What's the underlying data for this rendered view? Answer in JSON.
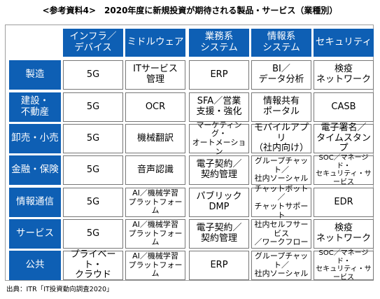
{
  "title": "<参考資料4>　2020年度に新規投資が期待される製品・サービス（業種別）",
  "columns": [
    "インフラ／\nデバイス",
    "ミドルウェア",
    "業務系\nシステム",
    "情報系\nシステム",
    "セキュリティ"
  ],
  "rows": [
    {
      "label": "製造",
      "cells": [
        "5G",
        "ITサービス\n管理",
        "ERP",
        "BI／\nデータ分析",
        "検疫\nネットワーク"
      ]
    },
    {
      "label": "建設・\n不動産",
      "cells": [
        "5G",
        "OCR",
        "SFA／営業\n支援・強化",
        "情報共有\nポータル",
        "CASB"
      ]
    },
    {
      "label": "卸売・小売",
      "cells": [
        "5G",
        "機械翻訳",
        "マーケティング・\nオートメーション",
        "モバイルアプリ\n（社内向け）",
        "電子署名／\nタイムスタンプ"
      ]
    },
    {
      "label": "金融・保険",
      "cells": [
        "5G",
        "音声認識",
        "電子契約／\n契約管理",
        "グループチャット／\n社内ソーシャル",
        "SOC／マネージド・\nセキュリティ・サービス"
      ]
    },
    {
      "label": "情報通信",
      "cells": [
        "5G",
        "AI／機械学習\nプラットフォーム",
        "パブリック\nDMP",
        "チャットボット／\nチャットサポート",
        "EDR"
      ]
    },
    {
      "label": "サービス",
      "cells": [
        "5G",
        "AI／機械学習\nプラットフォーム",
        "電子契約／\n契約管理",
        "社内セルフサービス\n／ワークフロー",
        "検疫\nネットワーク"
      ]
    },
    {
      "label": "公共",
      "cells": [
        "プライベート・\nクラウド",
        "AI／機械学習\nプラットフォーム",
        "ERP",
        "グループチャット／\n社内ソーシャル",
        "SOC／マネージド・\nセキュリティ・サービス"
      ]
    }
  ],
  "source": "出典：ITR「IT投資動向調査2020」"
}
